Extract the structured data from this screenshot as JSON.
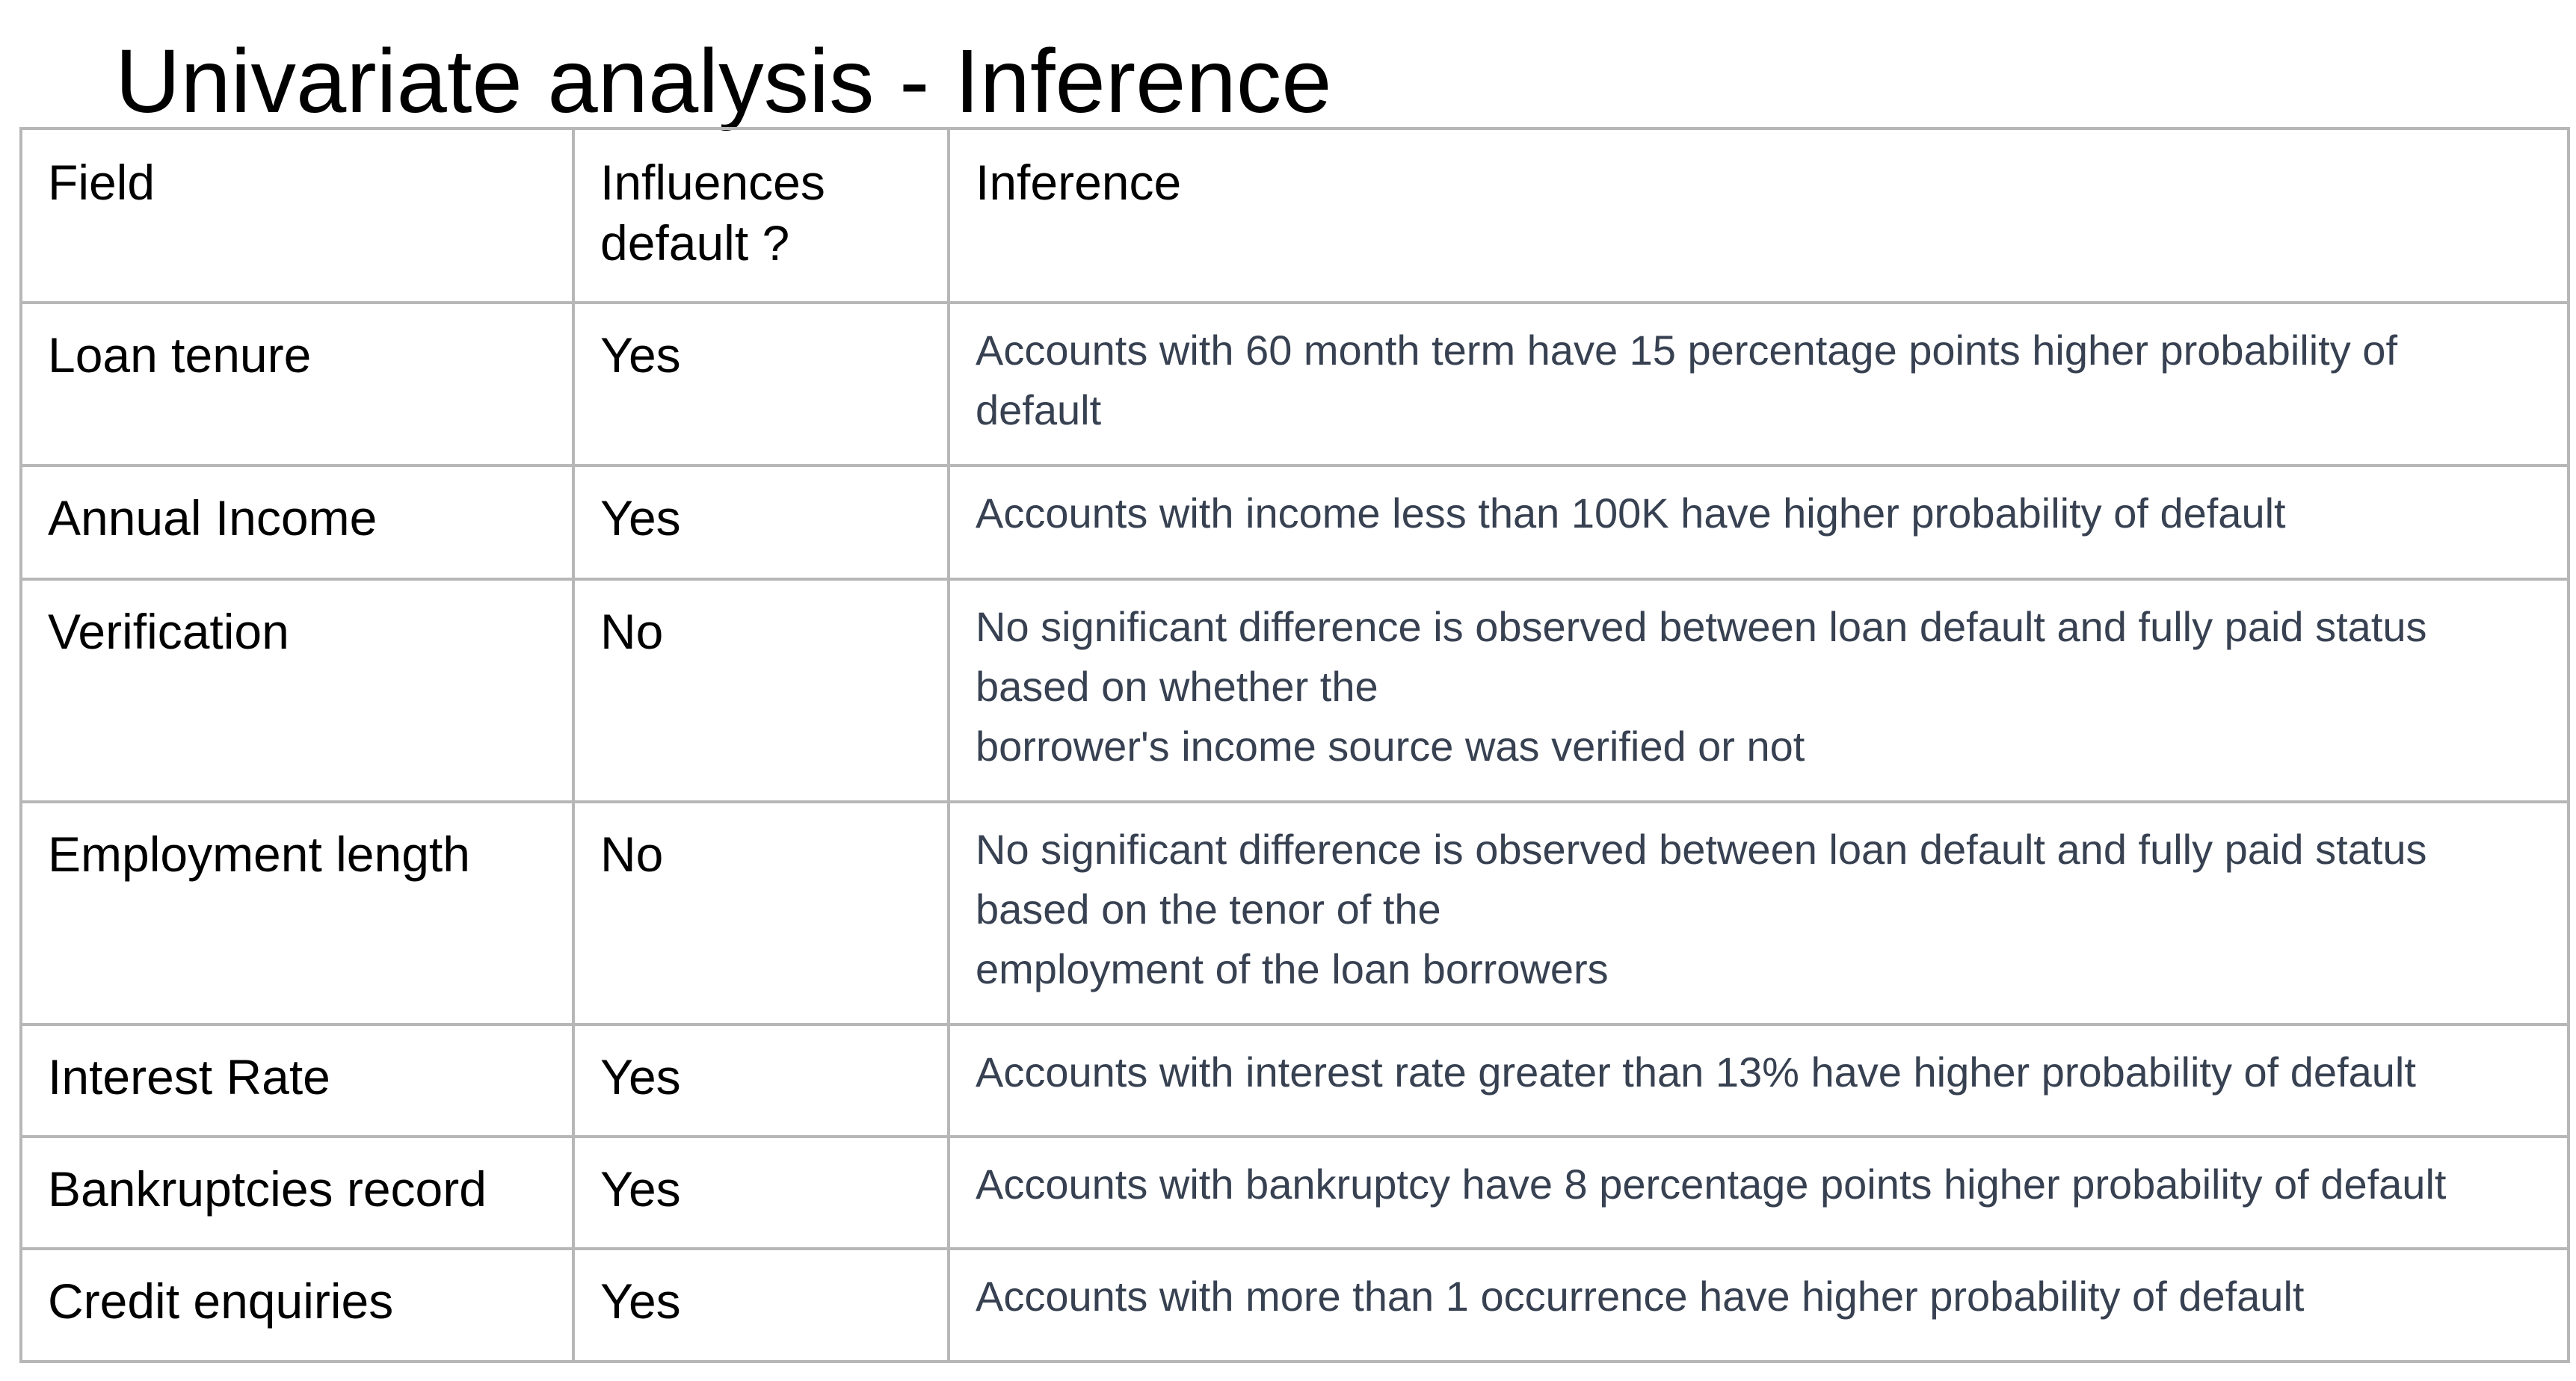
{
  "title": "Univariate analysis - Inference",
  "table": {
    "headers": [
      "Field",
      "Influences default ?",
      "Inference"
    ],
    "header_influences_lines": [
      "Influences",
      "default ?"
    ],
    "rows": [
      {
        "field": "Loan tenure",
        "influences": "Yes",
        "inference_lines": [
          "Accounts with 60 month term have 15 percentage points higher probability of",
          "default"
        ]
      },
      {
        "field": "Annual Income",
        "influences": "Yes",
        "inference_lines": [
          "Accounts with income less than 100K have higher probability of default"
        ]
      },
      {
        "field": "Verification",
        "influences": "No",
        "inference_lines": [
          "No significant difference is observed between loan default and fully paid status",
          "based on whether the",
          "borrower's income source was verified or not"
        ]
      },
      {
        "field": "Employment length",
        "influences": "No",
        "inference_lines": [
          "No significant difference is observed between loan default and fully paid status",
          "based on the tenor of the",
          "employment of the loan borrowers"
        ]
      },
      {
        "field": "Interest Rate",
        "influences": "Yes",
        "inference_lines": [
          "Accounts with interest rate greater than 13% have higher probability of default"
        ]
      },
      {
        "field": "Bankruptcies record",
        "influences": "Yes",
        "inference_lines": [
          "Accounts with bankruptcy have 8 percentage points higher probability of default"
        ]
      },
      {
        "field": "Credit enquiries",
        "influences": "Yes",
        "inference_lines": [
          "Accounts with more than 1 occurrence have higher probability of default"
        ]
      }
    ]
  }
}
